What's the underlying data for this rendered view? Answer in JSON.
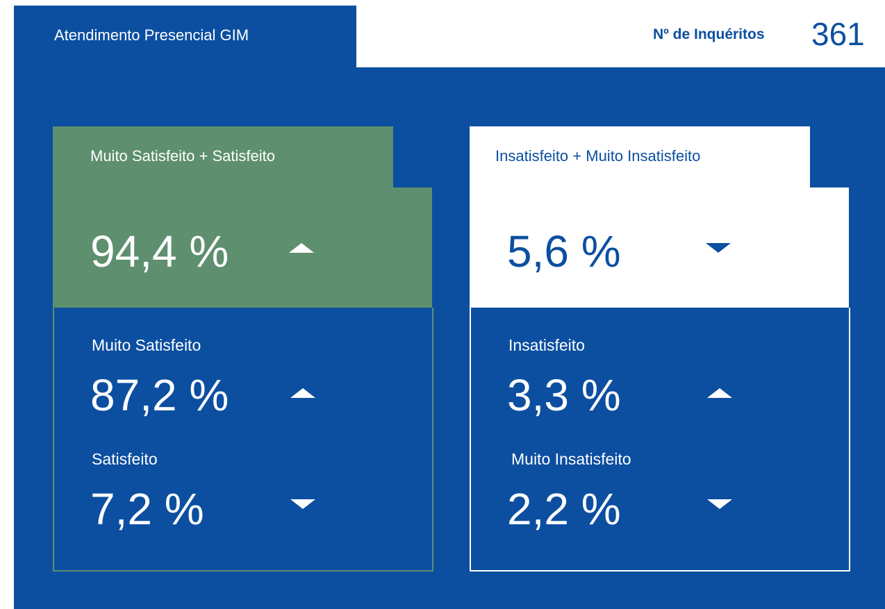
{
  "header": {
    "title": "Atendimento Presencial GIM",
    "count_label": "Nº de Inquéritos",
    "count_value": "361"
  },
  "cards": [
    {
      "title": "Muito Satisfeito + Satisfeito",
      "value": "94,4 %",
      "trend": "up",
      "color": "#5e8f6e",
      "text_color": "#ffffff",
      "items": [
        {
          "label": "Muito Satisfeito",
          "value": "87,2 %",
          "trend": "up"
        },
        {
          "label": "Satisfeito",
          "value": "7,2 %",
          "trend": "down"
        }
      ]
    },
    {
      "title": "Insatisfeito + Muito Insatisfeito",
      "value": "5,6 %",
      "trend": "down",
      "color": "#ffffff",
      "text_color": "#0c4fa0",
      "items": [
        {
          "label": "Insatisfeito",
          "value": "3,3 %",
          "trend": "up"
        },
        {
          "label": "Muito Insatisfeito",
          "value": "2,2 %",
          "trend": "down"
        }
      ]
    }
  ]
}
